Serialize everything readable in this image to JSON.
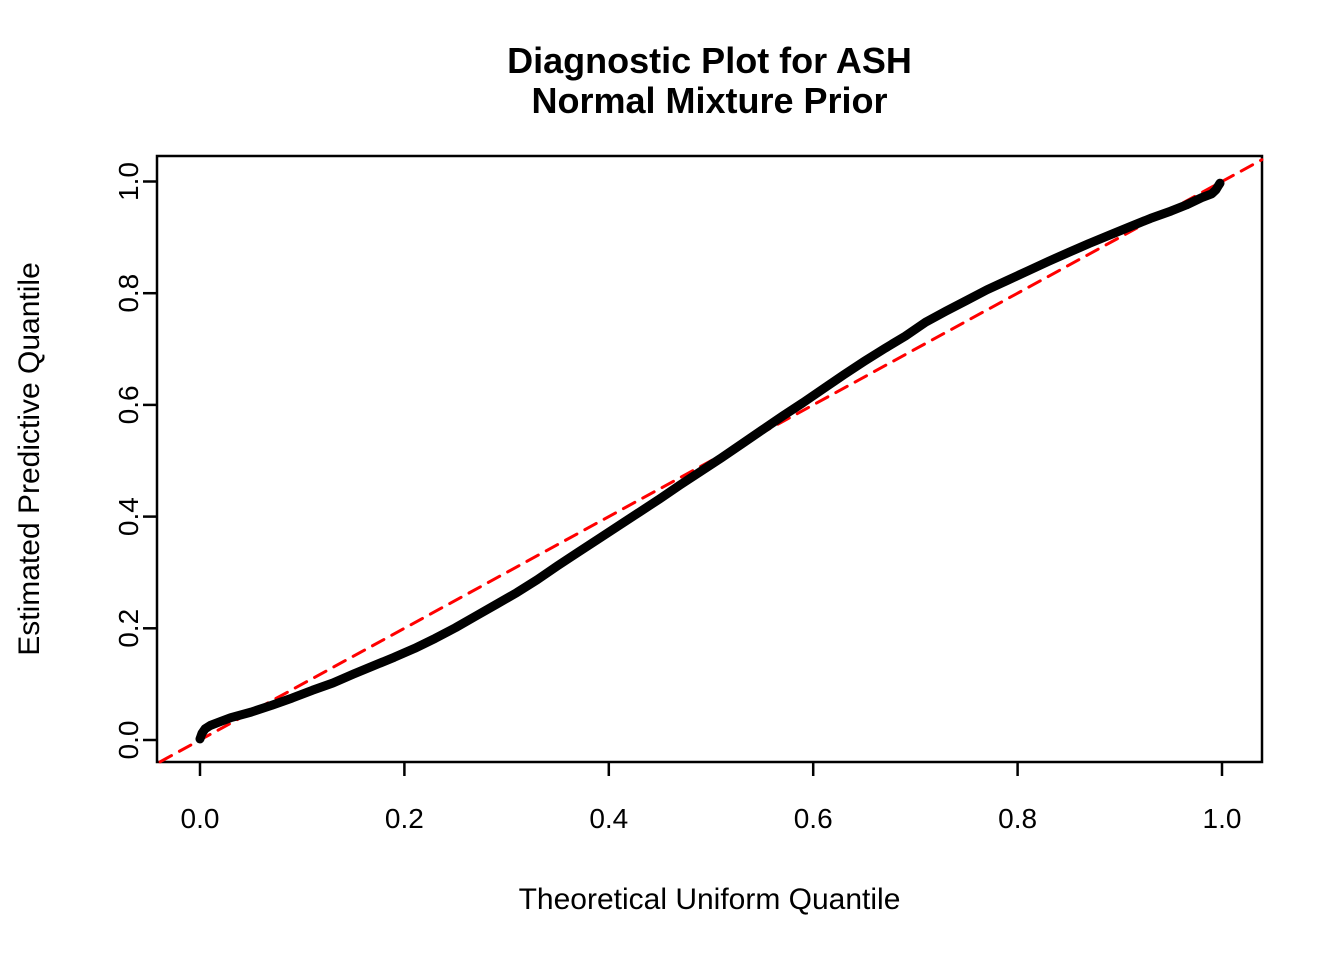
{
  "title": {
    "line1": "Diagnostic Plot for ASH",
    "line2": "Normal Mixture Prior"
  },
  "axes": {
    "x": {
      "label": "Theoretical Uniform Quantile",
      "tick_values": [
        0.0,
        0.2,
        0.4,
        0.6,
        0.8,
        1.0
      ],
      "tick_labels": [
        "0.0",
        "0.2",
        "0.4",
        "0.6",
        "0.8",
        "1.0"
      ]
    },
    "y": {
      "label": "Estimated Predictive Quantile",
      "tick_values": [
        0.0,
        0.2,
        0.4,
        0.6,
        0.8,
        1.0
      ],
      "tick_labels": [
        "0.0",
        "0.2",
        "0.4",
        "0.6",
        "0.8",
        "1.0"
      ]
    }
  },
  "colors": {
    "background": "#FFFFFF",
    "axis": "#000000",
    "curve": "#000000",
    "reference_line": "#FF0000"
  },
  "chart_data": {
    "type": "line",
    "title": "Diagnostic Plot for ASH / Normal Mixture Prior",
    "xlabel": "Theoretical Uniform Quantile",
    "ylabel": "Estimated Predictive Quantile",
    "xlim": [
      -0.04,
      1.04
    ],
    "ylim": [
      -0.04,
      1.04
    ],
    "grid": false,
    "legend": false,
    "x_ticks": [
      0.0,
      0.2,
      0.4,
      0.6,
      0.8,
      1.0
    ],
    "y_ticks": [
      0.0,
      0.2,
      0.4,
      0.6,
      0.8,
      1.0
    ],
    "series": [
      {
        "name": "estimated-predictive-quantile-curve",
        "type": "line",
        "color": "#000000",
        "linewidth": 9,
        "style": "solid",
        "x": [
          0.0,
          0.002,
          0.005,
          0.01,
          0.02,
          0.03,
          0.05,
          0.07,
          0.09,
          0.11,
          0.13,
          0.15,
          0.17,
          0.19,
          0.21,
          0.23,
          0.25,
          0.27,
          0.29,
          0.31,
          0.33,
          0.35,
          0.37,
          0.39,
          0.41,
          0.43,
          0.45,
          0.47,
          0.49,
          0.51,
          0.53,
          0.55,
          0.57,
          0.59,
          0.61,
          0.63,
          0.65,
          0.67,
          0.69,
          0.71,
          0.73,
          0.75,
          0.77,
          0.79,
          0.81,
          0.83,
          0.85,
          0.87,
          0.89,
          0.91,
          0.93,
          0.95,
          0.965,
          0.98,
          0.99,
          0.994,
          0.996,
          0.998
        ],
        "y": [
          0.002,
          0.012,
          0.02,
          0.026,
          0.033,
          0.04,
          0.05,
          0.062,
          0.075,
          0.089,
          0.102,
          0.118,
          0.133,
          0.148,
          0.164,
          0.182,
          0.201,
          0.222,
          0.243,
          0.264,
          0.287,
          0.312,
          0.336,
          0.36,
          0.384,
          0.408,
          0.432,
          0.457,
          0.481,
          0.505,
          0.53,
          0.555,
          0.58,
          0.604,
          0.629,
          0.654,
          0.678,
          0.701,
          0.723,
          0.748,
          0.768,
          0.787,
          0.806,
          0.823,
          0.84,
          0.857,
          0.873,
          0.889,
          0.904,
          0.919,
          0.934,
          0.947,
          0.958,
          0.971,
          0.978,
          0.985,
          0.991,
          0.997
        ],
        "description": "QQ plot: estimated predictive quantiles vs theoretical uniform quantiles"
      },
      {
        "name": "reference-diagonal-y-equals-x",
        "type": "line",
        "color": "#FF0000",
        "linewidth": 3,
        "style": "dashed",
        "x": [
          -0.039,
          1.039
        ],
        "y": [
          -0.039,
          1.039
        ],
        "description": "y = x reference line"
      }
    ]
  }
}
